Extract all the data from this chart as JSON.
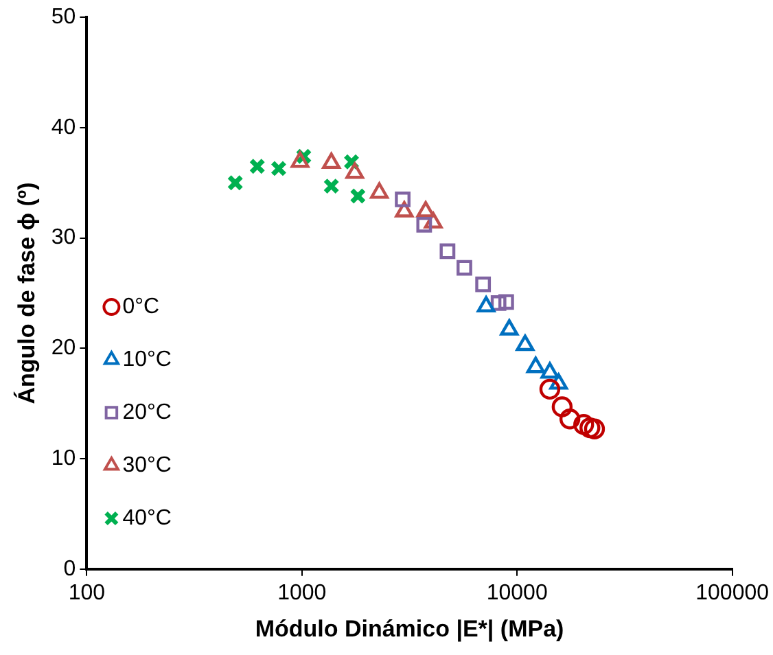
{
  "chart_data": {
    "type": "scatter",
    "xlabel": "Módulo Dinámico |E*| (MPa)",
    "ylabel": "Ángulo de fase ϕ (º)",
    "log": "x",
    "xlim": [
      100,
      100000
    ],
    "xticks": [
      100,
      1000,
      10000,
      100000
    ],
    "ylim": [
      0,
      50
    ],
    "yticks": [
      0,
      10,
      20,
      30,
      40,
      50
    ],
    "grid": false,
    "legend": "left",
    "series": [
      {
        "name": "0°C",
        "color": "#c00000",
        "marker": "circle",
        "x": [
          14200,
          16200,
          17600,
          20400,
          21800,
          22900
        ],
        "values": [
          16.3,
          14.7,
          13.6,
          13.1,
          12.8,
          12.7
        ]
      },
      {
        "name": "10°C",
        "color": "#0070c0",
        "marker": "triangle",
        "x": [
          7180,
          9200,
          10900,
          12200,
          14200,
          15600
        ],
        "values": [
          23.8,
          21.7,
          20.3,
          18.3,
          17.8,
          16.8
        ]
      },
      {
        "name": "20°C",
        "color": "#8064a2",
        "marker": "square",
        "x": [
          2940,
          3700,
          4750,
          5690,
          6950,
          8200,
          8900
        ],
        "values": [
          33.5,
          31.2,
          28.8,
          27.3,
          25.8,
          24.1,
          24.2
        ]
      },
      {
        "name": "30°C",
        "color": "#c0504d",
        "marker": "triangle",
        "x": [
          980,
          1370,
          1760,
          2290,
          2990,
          3760,
          4080
        ],
        "values": [
          36.9,
          36.8,
          35.9,
          34.1,
          32.4,
          32.4,
          31.4
        ]
      },
      {
        "name": "40°C",
        "color": "#00b050",
        "marker": "cross",
        "x": [
          490,
          620,
          780,
          1020,
          1370,
          1700,
          1820
        ],
        "values": [
          35.0,
          36.5,
          36.3,
          37.4,
          34.7,
          36.9,
          33.8
        ]
      }
    ]
  }
}
